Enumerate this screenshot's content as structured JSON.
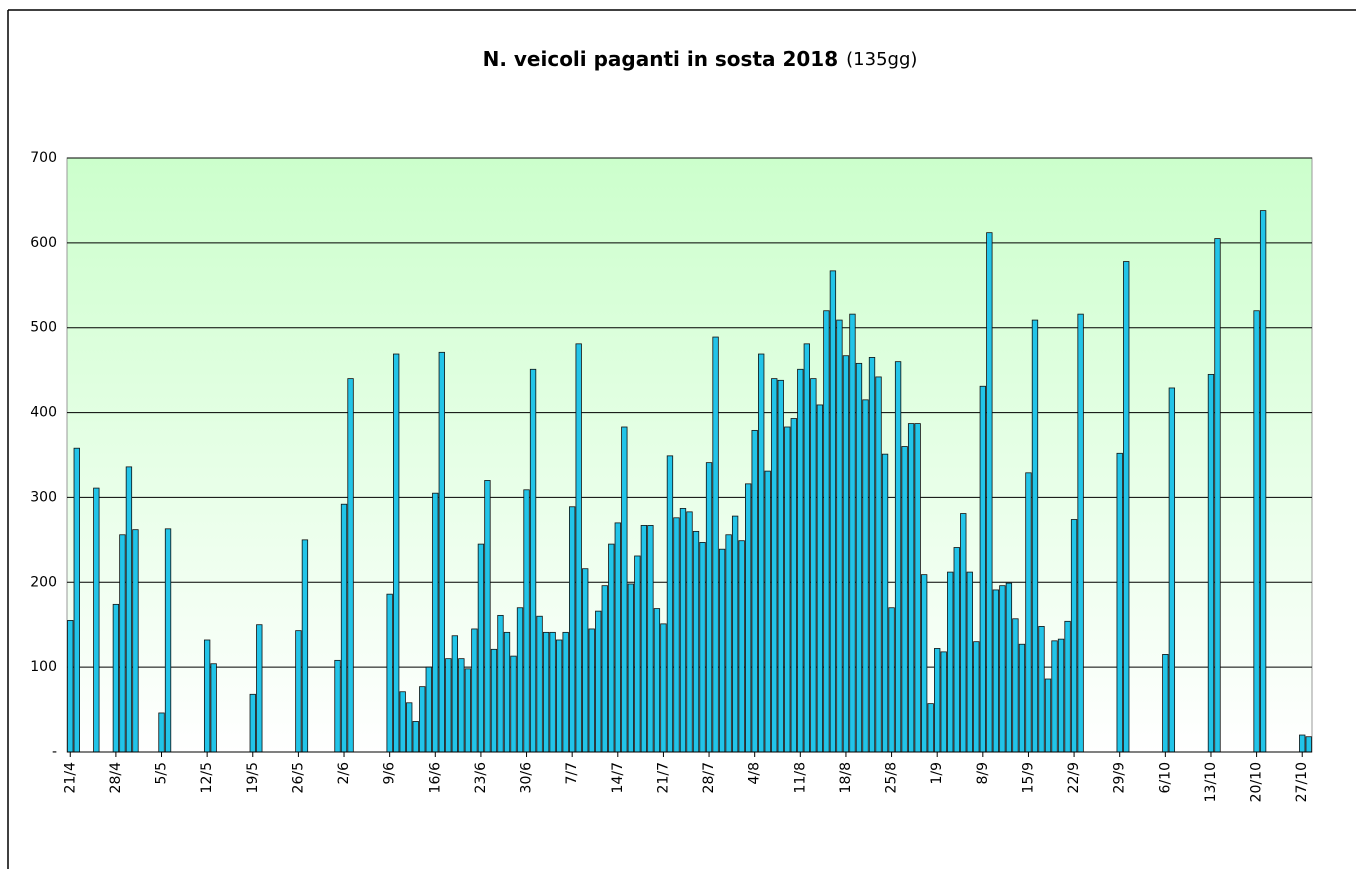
{
  "chart_data": {
    "type": "bar",
    "title": "N. veicoli paganti in sosta 2018",
    "title_note": "(135gg)",
    "color": "#22c4e8",
    "grid": true,
    "ylim": [
      0,
      700
    ],
    "yticks": [
      {
        "value": 0,
        "label": "-"
      },
      100,
      200,
      300,
      400,
      500,
      600,
      700
    ],
    "categories": [
      "21/4",
      null,
      null,
      null,
      null,
      null,
      null,
      "28/4",
      null,
      null,
      null,
      null,
      null,
      null,
      "5/5",
      null,
      null,
      null,
      null,
      null,
      null,
      "12/5",
      null,
      null,
      null,
      null,
      null,
      null,
      "19/5",
      null,
      null,
      null,
      null,
      null,
      null,
      "26/5",
      null,
      null,
      null,
      null,
      null,
      null,
      "2/6",
      null,
      null,
      null,
      null,
      null,
      null,
      "9/6",
      null,
      null,
      null,
      null,
      null,
      null,
      "16/6",
      null,
      null,
      null,
      null,
      null,
      null,
      "23/6",
      null,
      null,
      null,
      null,
      null,
      null,
      "30/6",
      null,
      null,
      null,
      null,
      null,
      null,
      "7/7",
      null,
      null,
      null,
      null,
      null,
      null,
      "14/7",
      null,
      null,
      null,
      null,
      null,
      null,
      "21/7",
      null,
      null,
      null,
      null,
      null,
      null,
      "28/7",
      null,
      null,
      null,
      null,
      null,
      null,
      "4/8",
      null,
      null,
      null,
      null,
      null,
      null,
      "11/8",
      null,
      null,
      null,
      null,
      null,
      null,
      "18/8",
      null,
      null,
      null,
      null,
      null,
      null,
      "25/8",
      null,
      null,
      null,
      null,
      null,
      null,
      "1/9",
      null,
      null,
      null,
      null,
      null,
      null,
      "8/9",
      null,
      null,
      null,
      null,
      null,
      null,
      "15/9",
      null,
      null,
      null,
      null,
      null,
      null,
      "22/9",
      null,
      null,
      null,
      null,
      null,
      null,
      "29/9",
      null,
      null,
      null,
      null,
      null,
      null,
      "6/10",
      null,
      null,
      null,
      null,
      null,
      null,
      "13/10",
      null,
      null,
      null,
      null,
      null,
      null,
      "20/10",
      null,
      null,
      null,
      null,
      null,
      null,
      "27/10",
      null
    ],
    "values": [
      155,
      358,
      null,
      null,
      311,
      null,
      null,
      174,
      256,
      336,
      262,
      null,
      null,
      null,
      46,
      263,
      null,
      null,
      null,
      null,
      null,
      132,
      104,
      null,
      null,
      null,
      null,
      null,
      68,
      150,
      null,
      null,
      null,
      null,
      null,
      143,
      250,
      null,
      null,
      null,
      null,
      108,
      292,
      440,
      null,
      null,
      null,
      null,
      null,
      186,
      469,
      71,
      58,
      36,
      77,
      100,
      305,
      471,
      110,
      137,
      110,
      98,
      145,
      245,
      320,
      121,
      161,
      141,
      113,
      170,
      309,
      451,
      160,
      141,
      141,
      132,
      141,
      289,
      481,
      216,
      145,
      166,
      196,
      245,
      270,
      383,
      198,
      231,
      267,
      267,
      169,
      151,
      349,
      276,
      287,
      283,
      260,
      247,
      341,
      489,
      239,
      256,
      278,
      249,
      316,
      379,
      469,
      331,
      440,
      438,
      383,
      393,
      451,
      481,
      440,
      409,
      520,
      567,
      509,
      467,
      516,
      458,
      415,
      465,
      442,
      351,
      170,
      460,
      360,
      387,
      387,
      209,
      57,
      122,
      118,
      212,
      241,
      281,
      212,
      130,
      431,
      612,
      191,
      196,
      199,
      157,
      127,
      329,
      509,
      148,
      86,
      131,
      133,
      154,
      274,
      516,
      null,
      null,
      null,
      null,
      null,
      352,
      578,
      null,
      null,
      null,
      null,
      null,
      115,
      429,
      null,
      null,
      null,
      null,
      null,
      445,
      605,
      null,
      null,
      null,
      null,
      null,
      520,
      638,
      null,
      null,
      null,
      null,
      null,
      20,
      18
    ]
  }
}
